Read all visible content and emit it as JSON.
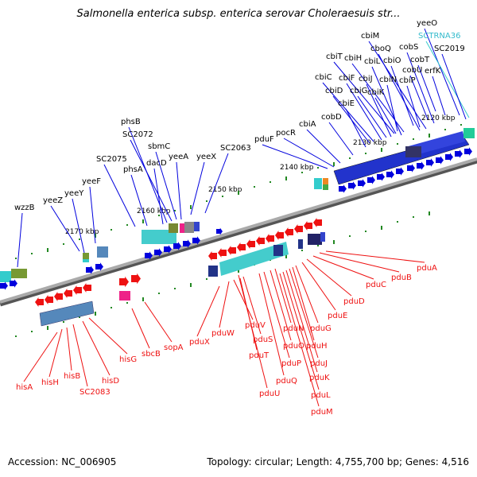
{
  "title": "Salmonella enterica subsp. enterica serovar Choleraesuis str...",
  "footer": {
    "accession": "Accession: NC_006905",
    "summary": "Topology: circular; Length: 4,755,700 bp; Genes: 4,516"
  },
  "colors": {
    "forward_strand": "#0000dd",
    "reverse_strand": "#ee1111",
    "trna": "#33cccc",
    "backbone": "#888888",
    "tick": "#228822"
  },
  "ticks": [
    "2120 kbp",
    "2130 kbp",
    "2140 kbp",
    "2150 kbp",
    "2160 kbp",
    "2170 kbp"
  ],
  "upper_labels": [
    "yeeO",
    "SCTRNA36",
    "cbiM",
    "cboQ",
    "cobS",
    "SC2019",
    "cbiT",
    "cbiH",
    "cbiO",
    "cobT",
    "cbiL",
    "cobU",
    "erfK",
    "cbiC",
    "cbiF",
    "cbiJ",
    "cbiN",
    "cbiP",
    "cbiD",
    "cbiG",
    "cbiK",
    "cbiE",
    "cobD",
    "cbiA",
    "pocR",
    "pduF",
    "phsB",
    "SC2072",
    "sbmC",
    "yeeA",
    "yeeX",
    "SC2063",
    "SC2075",
    "dacD",
    "phsA",
    "yeeF",
    "yeeZ",
    "yeeY",
    "wzzB"
  ],
  "lower_labels": [
    "pduA",
    "pduB",
    "pduC",
    "pduD",
    "pduE",
    "pduG",
    "pduH",
    "pduJ",
    "pduK",
    "pduL",
    "pduM",
    "pduN",
    "pduO",
    "pduP",
    "pduQ",
    "pduU",
    "pduS",
    "pduT",
    "pduV",
    "pduW",
    "pduX",
    "sopA",
    "sbcB",
    "hisG",
    "hisD",
    "SC2083",
    "hisB",
    "hisH",
    "hisA"
  ]
}
